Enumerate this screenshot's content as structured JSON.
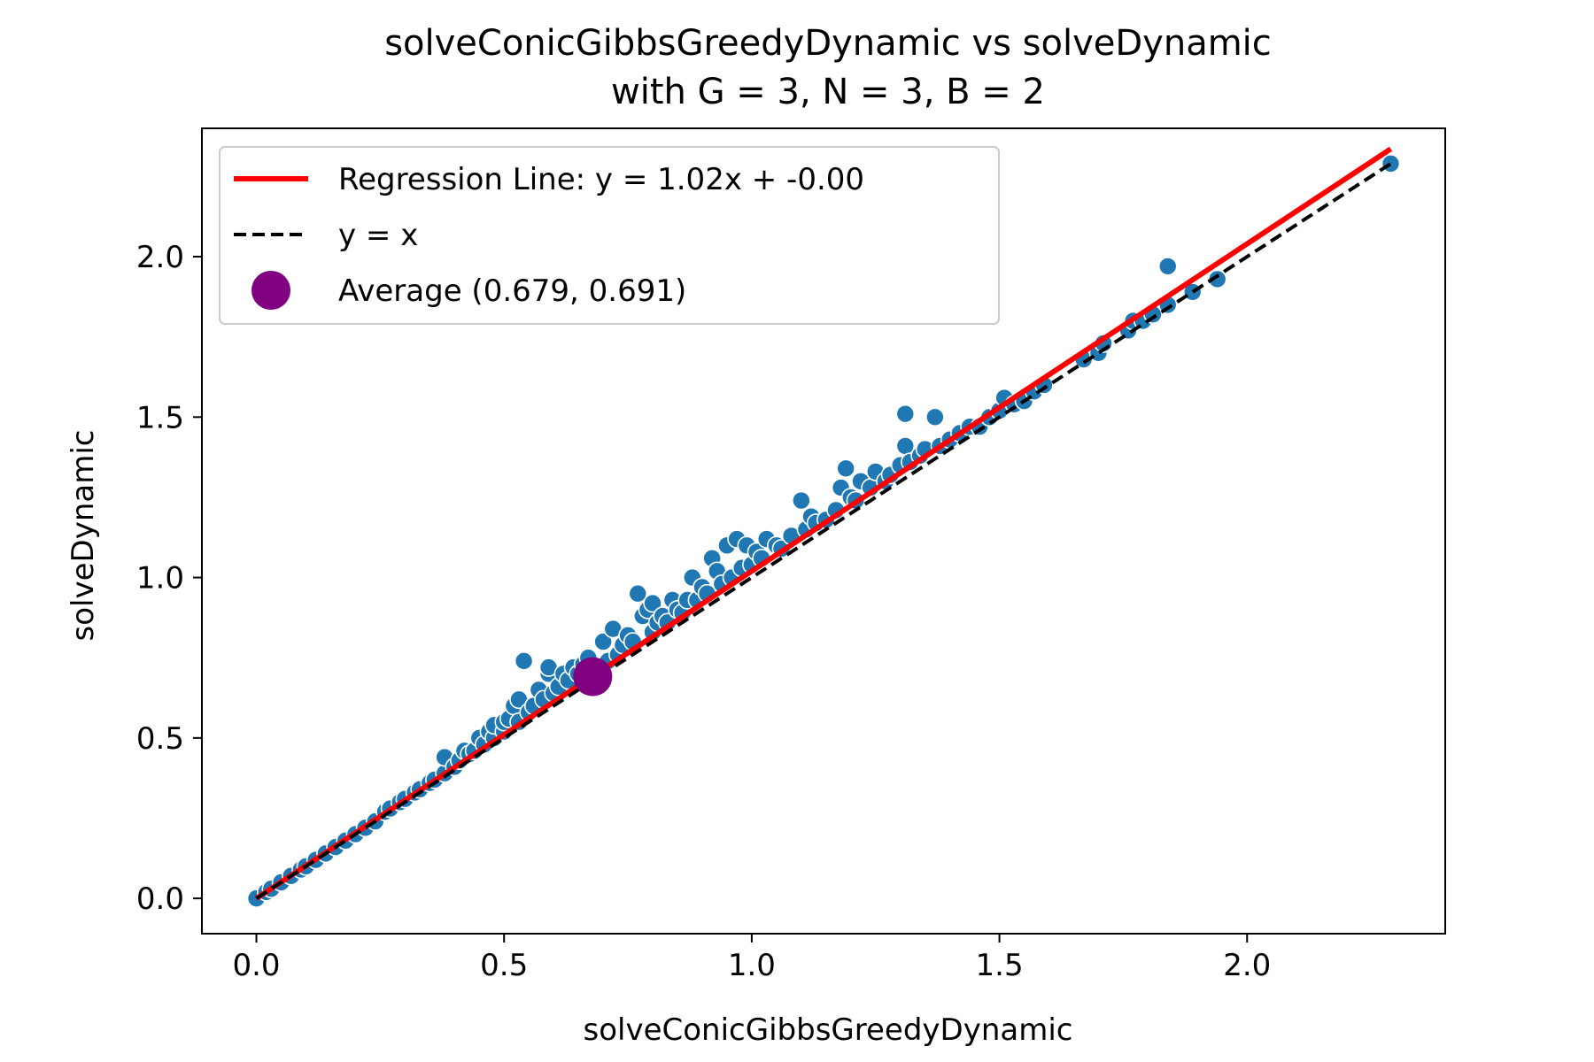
{
  "chart_data": {
    "type": "scatter",
    "title": "solveConicGibbsGreedyDynamic vs solveDynamic",
    "subtitle": "with G = 3, N = 3, B = 2",
    "xlabel": "solveConicGibbsGreedyDynamic",
    "ylabel": "solveDynamic",
    "xlim": [
      -0.11,
      2.4
    ],
    "ylim": [
      -0.11,
      2.4
    ],
    "xticks": [
      0.0,
      0.5,
      1.0,
      1.5,
      2.0
    ],
    "yticks": [
      0.0,
      0.5,
      1.0,
      1.5,
      2.0
    ],
    "xtick_labels": [
      "0.0",
      "0.5",
      "1.0",
      "1.5",
      "2.0"
    ],
    "ytick_labels": [
      "0.0",
      "0.5",
      "1.0",
      "1.5",
      "2.0"
    ],
    "grid": false,
    "legend_position": "upper-left",
    "legend": [
      {
        "label": "Regression Line: y = 1.02x + -0.00",
        "kind": "line",
        "color": "#ff0000"
      },
      {
        "label": "y = x",
        "kind": "dashed",
        "color": "#000000"
      },
      {
        "label": "Average (0.679, 0.691)",
        "kind": "marker",
        "color": "#800080"
      }
    ],
    "regression": {
      "slope": 1.02,
      "intercept": 0.0,
      "x_range": [
        0.0,
        2.29
      ],
      "color": "#ff0000"
    },
    "identity_line": {
      "x_range": [
        0.0,
        2.29
      ],
      "color": "#000000"
    },
    "average": {
      "x": 0.679,
      "y": 0.691,
      "color": "#800080"
    },
    "scatter_color": "#1f77b4",
    "points": [
      [
        0.0,
        0.0
      ],
      [
        0.02,
        0.02
      ],
      [
        0.03,
        0.03
      ],
      [
        0.05,
        0.05
      ],
      [
        0.07,
        0.07
      ],
      [
        0.09,
        0.09
      ],
      [
        0.1,
        0.1
      ],
      [
        0.12,
        0.12
      ],
      [
        0.14,
        0.14
      ],
      [
        0.16,
        0.16
      ],
      [
        0.18,
        0.18
      ],
      [
        0.2,
        0.2
      ],
      [
        0.22,
        0.22
      ],
      [
        0.24,
        0.24
      ],
      [
        0.26,
        0.27
      ],
      [
        0.27,
        0.28
      ],
      [
        0.29,
        0.3
      ],
      [
        0.3,
        0.31
      ],
      [
        0.32,
        0.33
      ],
      [
        0.33,
        0.34
      ],
      [
        0.35,
        0.36
      ],
      [
        0.36,
        0.37
      ],
      [
        0.38,
        0.39
      ],
      [
        0.38,
        0.44
      ],
      [
        0.4,
        0.41
      ],
      [
        0.41,
        0.43
      ],
      [
        0.42,
        0.46
      ],
      [
        0.43,
        0.45
      ],
      [
        0.44,
        0.46
      ],
      [
        0.45,
        0.5
      ],
      [
        0.46,
        0.48
      ],
      [
        0.47,
        0.52
      ],
      [
        0.48,
        0.5
      ],
      [
        0.48,
        0.54
      ],
      [
        0.5,
        0.52
      ],
      [
        0.5,
        0.55
      ],
      [
        0.51,
        0.56
      ],
      [
        0.52,
        0.6
      ],
      [
        0.53,
        0.55
      ],
      [
        0.53,
        0.62
      ],
      [
        0.54,
        0.74
      ],
      [
        0.55,
        0.58
      ],
      [
        0.56,
        0.6
      ],
      [
        0.57,
        0.65
      ],
      [
        0.58,
        0.62
      ],
      [
        0.59,
        0.7
      ],
      [
        0.59,
        0.72
      ],
      [
        0.6,
        0.64
      ],
      [
        0.61,
        0.66
      ],
      [
        0.62,
        0.7
      ],
      [
        0.63,
        0.68
      ],
      [
        0.64,
        0.72
      ],
      [
        0.65,
        0.7
      ],
      [
        0.66,
        0.73
      ],
      [
        0.67,
        0.75
      ],
      [
        0.69,
        0.71
      ],
      [
        0.7,
        0.8
      ],
      [
        0.71,
        0.74
      ],
      [
        0.72,
        0.84
      ],
      [
        0.73,
        0.76
      ],
      [
        0.74,
        0.79
      ],
      [
        0.75,
        0.82
      ],
      [
        0.76,
        0.8
      ],
      [
        0.77,
        0.95
      ],
      [
        0.78,
        0.88
      ],
      [
        0.79,
        0.9
      ],
      [
        0.8,
        0.83
      ],
      [
        0.8,
        0.92
      ],
      [
        0.81,
        0.86
      ],
      [
        0.82,
        0.88
      ],
      [
        0.83,
        0.86
      ],
      [
        0.84,
        0.93
      ],
      [
        0.85,
        0.9
      ],
      [
        0.86,
        0.89
      ],
      [
        0.87,
        0.93
      ],
      [
        0.88,
        1.0
      ],
      [
        0.89,
        0.93
      ],
      [
        0.9,
        0.97
      ],
      [
        0.91,
        0.95
      ],
      [
        0.92,
        1.06
      ],
      [
        0.93,
        1.02
      ],
      [
        0.94,
        0.98
      ],
      [
        0.95,
        1.1
      ],
      [
        0.96,
        1.0
      ],
      [
        0.97,
        1.12
      ],
      [
        0.98,
        1.03
      ],
      [
        0.99,
        1.1
      ],
      [
        1.0,
        1.04
      ],
      [
        1.01,
        1.08
      ],
      [
        1.02,
        1.06
      ],
      [
        1.03,
        1.12
      ],
      [
        1.05,
        1.1
      ],
      [
        1.06,
        1.09
      ],
      [
        1.08,
        1.13
      ],
      [
        1.1,
        1.24
      ],
      [
        1.11,
        1.15
      ],
      [
        1.12,
        1.19
      ],
      [
        1.13,
        1.17
      ],
      [
        1.15,
        1.18
      ],
      [
        1.17,
        1.21
      ],
      [
        1.18,
        1.28
      ],
      [
        1.19,
        1.34
      ],
      [
        1.2,
        1.25
      ],
      [
        1.21,
        1.24
      ],
      [
        1.22,
        1.3
      ],
      [
        1.24,
        1.28
      ],
      [
        1.25,
        1.33
      ],
      [
        1.27,
        1.3
      ],
      [
        1.28,
        1.32
      ],
      [
        1.3,
        1.35
      ],
      [
        1.31,
        1.51
      ],
      [
        1.31,
        1.41
      ],
      [
        1.32,
        1.36
      ],
      [
        1.34,
        1.38
      ],
      [
        1.35,
        1.4
      ],
      [
        1.37,
        1.5
      ],
      [
        1.38,
        1.41
      ],
      [
        1.4,
        1.43
      ],
      [
        1.42,
        1.45
      ],
      [
        1.44,
        1.47
      ],
      [
        1.46,
        1.47
      ],
      [
        1.48,
        1.5
      ],
      [
        1.5,
        1.52
      ],
      [
        1.51,
        1.56
      ],
      [
        1.53,
        1.54
      ],
      [
        1.55,
        1.55
      ],
      [
        1.57,
        1.58
      ],
      [
        1.59,
        1.6
      ],
      [
        1.67,
        1.68
      ],
      [
        1.7,
        1.7
      ],
      [
        1.71,
        1.73
      ],
      [
        1.76,
        1.77
      ],
      [
        1.77,
        1.8
      ],
      [
        1.79,
        1.8
      ],
      [
        1.81,
        1.82
      ],
      [
        1.84,
        1.97
      ],
      [
        1.84,
        1.85
      ],
      [
        1.89,
        1.89
      ],
      [
        1.94,
        1.93
      ],
      [
        2.29,
        2.29
      ]
    ]
  }
}
